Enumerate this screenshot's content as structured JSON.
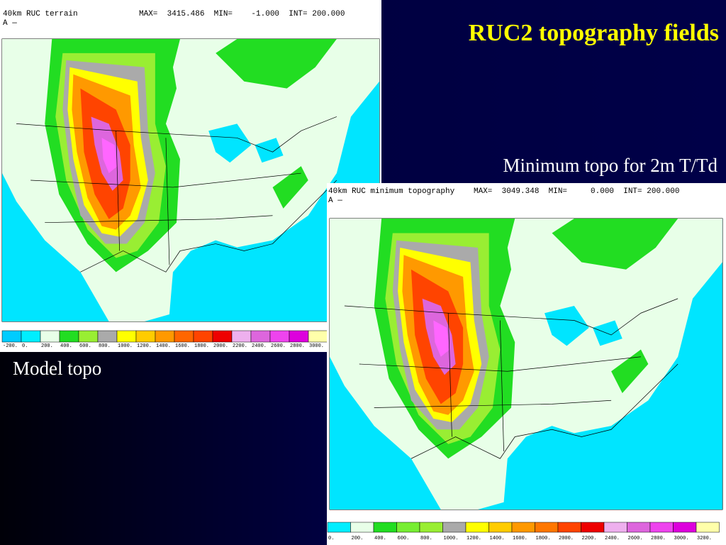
{
  "slide": {
    "title": "RUC2 topography fields",
    "subtitle": "Minimum topo for 2m T/Td",
    "caption": "Model topo"
  },
  "maps": [
    {
      "title": "40km RUC terrain",
      "stats": "MAX=  3415.486  MIN=    -1.000  INT= 200.000",
      "label": "A —",
      "colorbar": [
        "-200.",
        "0.",
        "200.",
        "400.",
        "600.",
        "800.",
        "1000.",
        "1200.",
        "1400.",
        "1600.",
        "1800.",
        "2000.",
        "2200.",
        "2400.",
        "2600.",
        "2800.",
        "3000."
      ]
    },
    {
      "title": "40km RUC minimum topography",
      "stats": "MAX=  3049.348  MIN=     0.000  INT= 200.000",
      "label": "A —",
      "colorbar": [
        "0.",
        "200.",
        "400.",
        "600.",
        "800.",
        "1000.",
        "1200.",
        "1400.",
        "1600.",
        "1800.",
        "2000.",
        "2200.",
        "2400.",
        "2600.",
        "2800.",
        "3000.",
        "3200."
      ]
    }
  ]
}
